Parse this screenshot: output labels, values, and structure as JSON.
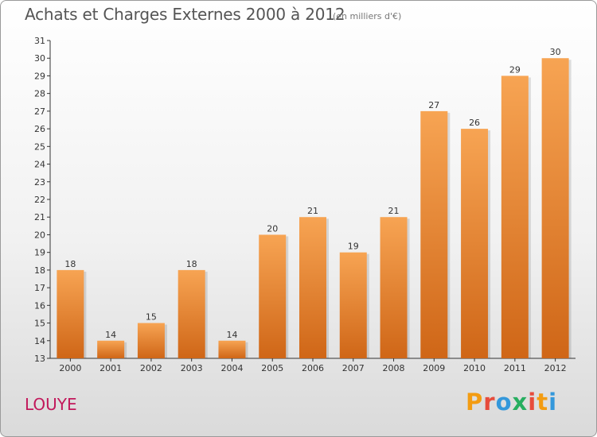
{
  "title": "Achats et Charges Externes 2000 à 2012",
  "subtitle": "(en milliers d'€)",
  "commune": "LOUYE",
  "logo": {
    "letters": [
      "P",
      "r",
      "o",
      "x",
      "i",
      "t",
      "i"
    ],
    "colors": [
      "#f39c12",
      "#e74c3c",
      "#3498db",
      "#27ae60",
      "#e74c3c",
      "#f39c12",
      "#3498db"
    ]
  },
  "colors": {
    "bar_top": "#f7a453",
    "bar_bottom": "#cf6617",
    "title": "#555555",
    "commune": "#c2185b"
  },
  "chart_data": {
    "type": "bar",
    "title": "Achats et Charges Externes 2000 à 2012",
    "categories": [
      "2000",
      "2001",
      "2002",
      "2003",
      "2004",
      "2005",
      "2006",
      "2007",
      "2008",
      "2009",
      "2010",
      "2011",
      "2012"
    ],
    "values": [
      18,
      14,
      15,
      18,
      14,
      20,
      21,
      19,
      21,
      27,
      26,
      29,
      30
    ],
    "ylim": [
      13,
      31
    ],
    "yticks": [
      13,
      14,
      15,
      16,
      17,
      18,
      19,
      20,
      21,
      22,
      23,
      24,
      25,
      26,
      27,
      28,
      29,
      30,
      31
    ],
    "grid": false,
    "data_labels": true
  }
}
